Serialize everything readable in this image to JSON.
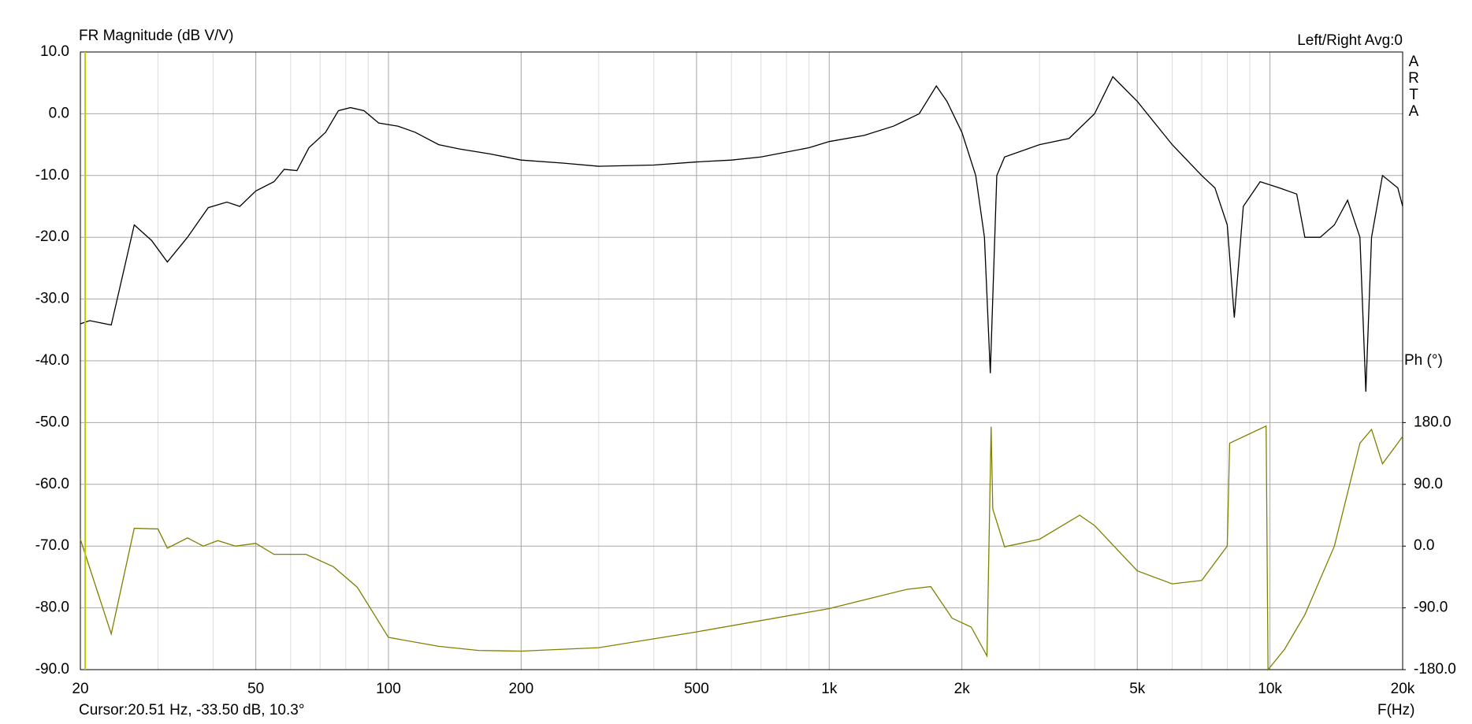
{
  "chart_data": {
    "type": "line",
    "title": "FR Magnitude (dB V/V)",
    "top_right_label": "Left/Right  Avg:0",
    "logo": "ARTA",
    "y2_label": "Ph (°)",
    "x_label": "F(Hz)",
    "cursor": {
      "x": 20.51,
      "label": "Cursor:20.51 Hz, -33.50 dB, 10.3°",
      "color": "#c8c800"
    },
    "xscale": "log",
    "grid": true,
    "xlim": [
      20,
      20000
    ],
    "xticks": [
      20,
      50,
      100,
      200,
      500,
      {
        "value": 1000,
        "label": "1k"
      },
      {
        "value": 2000,
        "label": "2k"
      },
      {
        "value": 5000,
        "label": "5k"
      },
      {
        "value": 10000,
        "label": "10k"
      },
      {
        "value": 20000,
        "label": "20k"
      }
    ],
    "ylim": [
      -90,
      10
    ],
    "yticks": [
      {
        "value": 10,
        "label": "10.0"
      },
      {
        "value": 0,
        "label": "0.0"
      },
      {
        "value": -10,
        "label": "-10.0"
      },
      {
        "value": -20,
        "label": "-20.0"
      },
      {
        "value": -30,
        "label": "-30.0"
      },
      {
        "value": -40,
        "label": "-40.0"
      },
      {
        "value": -50,
        "label": "-50.0"
      },
      {
        "value": -60,
        "label": "-60.0"
      },
      {
        "value": -70,
        "label": "-70.0"
      },
      {
        "value": -80,
        "label": "-80.0"
      },
      {
        "value": -90,
        "label": "-90.0"
      }
    ],
    "y2lim": [
      -180,
      720
    ],
    "y2ticks": [
      {
        "value": 180,
        "label": "180.0"
      },
      {
        "value": 90,
        "label": "90.0"
      },
      {
        "value": 0,
        "label": "0.0"
      },
      {
        "value": -90,
        "label": "-90.0"
      },
      {
        "value": -180,
        "label": "-180.0"
      }
    ],
    "series": [
      {
        "name": "Magnitude",
        "color": "#000000",
        "x": [
          20,
          21,
          23.5,
          26.5,
          29,
          31.5,
          35,
          39,
          43,
          46,
          50,
          55,
          58,
          62,
          66,
          72,
          77,
          82,
          88,
          95,
          105,
          115,
          130,
          145,
          170,
          200,
          250,
          300,
          400,
          500,
          600,
          700,
          900,
          1000,
          1200,
          1400,
          1600,
          1750,
          1850,
          2000,
          2150,
          2250,
          2320,
          2400,
          2500,
          3000,
          3500,
          4000,
          4400,
          5000,
          6000,
          7000,
          7500,
          8000,
          8300,
          8700,
          9500,
          10500,
          11500,
          12000,
          13000,
          14000,
          15000,
          16000,
          16500,
          17000,
          18000,
          19500,
          20000
        ],
        "values": [
          -34,
          -33.5,
          -34.2,
          -18,
          -20.5,
          -24,
          -20,
          -15.2,
          -14.3,
          -15,
          -12.5,
          -11,
          -9,
          -9.2,
          -5.5,
          -3,
          0.5,
          1,
          0.5,
          -1.5,
          -2,
          -3,
          -5,
          -5.7,
          -6.5,
          -7.5,
          -8,
          -8.5,
          -8.3,
          -7.8,
          -7.5,
          -7,
          -5.5,
          -4.5,
          -3.5,
          -2,
          0,
          4.5,
          2,
          -3,
          -10,
          -20,
          -42,
          -10,
          -7,
          -5,
          -4,
          0,
          6,
          2,
          -5,
          -10,
          -12,
          -18,
          -33,
          -15,
          -11,
          -12,
          -13,
          -20,
          -20,
          -18,
          -14,
          -20,
          -45,
          -20,
          -10,
          -12,
          -15
        ]
      },
      {
        "name": "Phase",
        "color": "#808000",
        "axis": "y2",
        "x": [
          20,
          23.5,
          26.5,
          30,
          31.5,
          35,
          38,
          41,
          45,
          50,
          55,
          65,
          75,
          85,
          100,
          130,
          160,
          200,
          300,
          500,
          1000,
          1500,
          1700,
          1900,
          2100,
          2280,
          2330,
          2350,
          2500,
          3000,
          3700,
          4000,
          5000,
          6000,
          7000,
          8000,
          8100,
          9800,
          9900,
          10800,
          12000,
          14000,
          16000,
          17000,
          18000,
          19500,
          20000
        ],
        "values": [
          10,
          -128,
          26,
          25,
          -3,
          12,
          0,
          8,
          0,
          4,
          -12,
          -12,
          -30,
          -60,
          -133,
          -146,
          -152,
          -153,
          -148,
          -125,
          -91,
          -63,
          -59,
          -105,
          -118,
          -160,
          174,
          54,
          -1,
          10,
          45,
          30,
          -36,
          -55,
          -50,
          0,
          150,
          175,
          -180,
          -150,
          -100,
          0,
          150,
          170,
          120,
          150,
          160
        ]
      }
    ]
  }
}
